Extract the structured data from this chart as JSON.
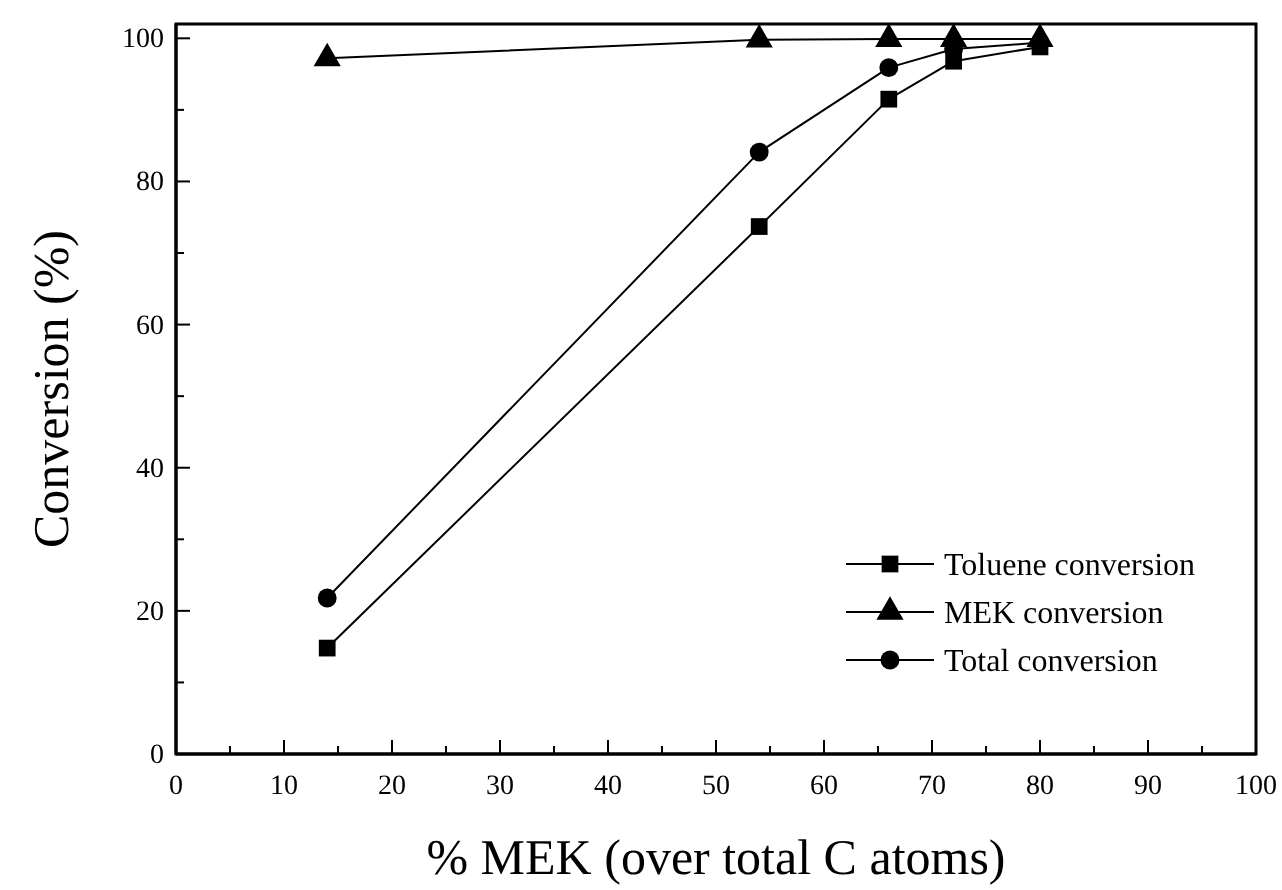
{
  "chart_data": {
    "type": "line",
    "xlabel": "% MEK (over total C atoms)",
    "ylabel": "Conversion (%)",
    "xlim": [
      0,
      100
    ],
    "ylim": [
      0,
      102
    ],
    "xticks": [
      0,
      {
        "value": 5,
        "label": null
      },
      10,
      {
        "value": 15,
        "label": null
      },
      20,
      {
        "value": 25,
        "label": null
      },
      30,
      {
        "value": 35,
        "label": null
      },
      40,
      {
        "value": 45,
        "label": null
      },
      50,
      {
        "value": 55,
        "label": null
      },
      60,
      {
        "value": 65,
        "label": null
      },
      70,
      {
        "value": 75,
        "label": null
      },
      80,
      {
        "value": 85,
        "label": null
      },
      90,
      {
        "value": 95,
        "label": null
      },
      100
    ],
    "yticks": [
      0,
      {
        "value": 10,
        "label": null
      },
      20,
      {
        "value": 30,
        "label": null
      },
      40,
      {
        "value": 50,
        "label": null
      },
      60,
      {
        "value": 70,
        "label": null
      },
      80,
      {
        "value": 90,
        "label": null
      },
      100
    ],
    "x": [
      14,
      54,
      66,
      72,
      80
    ],
    "series": [
      {
        "name": "Toluene conversion",
        "color": "#000000",
        "marker": "square",
        "values": [
          14.8,
          73.7,
          91.5,
          96.8,
          98.8
        ]
      },
      {
        "name": "MEK conversion",
        "color": "#000000",
        "marker": "triangle",
        "values": [
          97.2,
          99.8,
          99.9,
          99.9,
          99.9
        ]
      },
      {
        "name": "Total conversion",
        "color": "#000000",
        "marker": "circle",
        "values": [
          21.8,
          84.1,
          95.9,
          98.5,
          99.4
        ]
      }
    ],
    "legend": "bottom right",
    "grid": false,
    "line_style": "solid"
  }
}
